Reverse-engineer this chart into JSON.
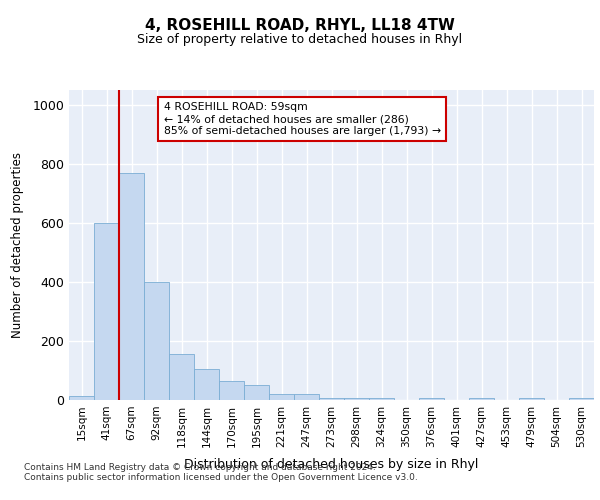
{
  "title": "4, ROSEHILL ROAD, RHYL, LL18 4TW",
  "subtitle": "Size of property relative to detached houses in Rhyl",
  "xlabel": "Distribution of detached houses by size in Rhyl",
  "ylabel": "Number of detached properties",
  "categories": [
    "15sqm",
    "41sqm",
    "67sqm",
    "92sqm",
    "118sqm",
    "144sqm",
    "170sqm",
    "195sqm",
    "221sqm",
    "247sqm",
    "273sqm",
    "298sqm",
    "324sqm",
    "350sqm",
    "376sqm",
    "401sqm",
    "427sqm",
    "453sqm",
    "479sqm",
    "504sqm",
    "530sqm"
  ],
  "values": [
    15,
    600,
    770,
    400,
    155,
    105,
    65,
    50,
    20,
    20,
    8,
    8,
    8,
    0,
    8,
    0,
    8,
    0,
    8,
    0,
    8
  ],
  "bar_color": "#c5d8f0",
  "bar_edge_color": "#7aadd4",
  "vline_x_index": 1.5,
  "vline_color": "#cc0000",
  "annotation_text": "4 ROSEHILL ROAD: 59sqm\n← 14% of detached houses are smaller (286)\n85% of semi-detached houses are larger (1,793) →",
  "annotation_box_color": "#ffffff",
  "annotation_box_edge": "#cc0000",
  "ylim": [
    0,
    1050
  ],
  "yticks": [
    0,
    200,
    400,
    600,
    800,
    1000
  ],
  "bg_color": "#e8eef8",
  "grid_color": "#ffffff",
  "footer": "Contains HM Land Registry data © Crown copyright and database right 2024.\nContains public sector information licensed under the Open Government Licence v3.0."
}
